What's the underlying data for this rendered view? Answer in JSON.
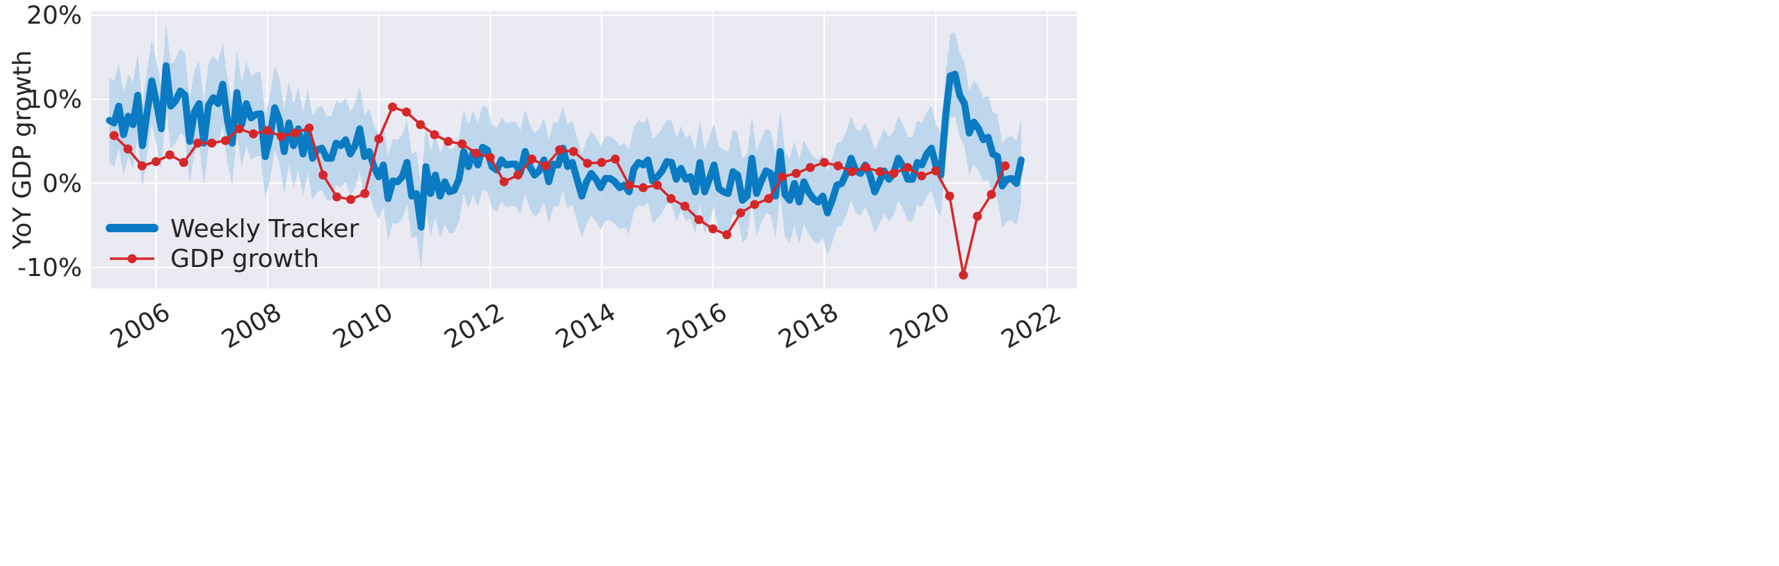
{
  "chart_data": {
    "type": "line",
    "title": "",
    "xlabel": "",
    "ylabel": "YoY GDP growth",
    "xlim": [
      "2004-11-01",
      "2022-07-15"
    ],
    "ylim": [
      -12.5,
      20.5
    ],
    "x_ticks": [
      "2006",
      "2008",
      "2010",
      "2012",
      "2014",
      "2016",
      "2018",
      "2020",
      "2022"
    ],
    "y_ticks": [
      {
        "value": 20,
        "label": "20%"
      },
      {
        "value": 10,
        "label": "10%"
      },
      {
        "value": 0,
        "label": "0%"
      },
      {
        "value": -10,
        "label": "-10%"
      }
    ],
    "grid": true,
    "legend_position": "lower-left",
    "colors": {
      "plot_background": "#eaeaf2",
      "grid": "#ffffff",
      "tracker": "#0a7bc2",
      "band": "#b7d3ec",
      "gdp": "#d62728"
    },
    "legend": [
      {
        "label": "Weekly Tracker",
        "style": "thick-line"
      },
      {
        "label": "GDP growth",
        "style": "line-marker"
      }
    ],
    "series": [
      {
        "name": "Weekly Tracker",
        "x_start": "2005-03-01",
        "x_end": "2021-07-15",
        "values": [
          7.5,
          7.2,
          9.2,
          5.8,
          8.0,
          7.0,
          10.5,
          4.5,
          8.5,
          12.2,
          9.5,
          6.5,
          14.0,
          9.2,
          9.8,
          11.0,
          10.5,
          5.0,
          8.5,
          9.5,
          4.8,
          9.3,
          10.2,
          9.5,
          11.8,
          7.5,
          4.8,
          10.8,
          7.0,
          9.5,
          7.8,
          8.2,
          8.3,
          3.2,
          5.5,
          9.0,
          7.5,
          3.8,
          7.2,
          4.5,
          6.5,
          3.5,
          6.3,
          3.0,
          4.0,
          4.2,
          3.0,
          3.0,
          4.8,
          4.5,
          5.2,
          3.5,
          4.5,
          6.5,
          3.2,
          3.8,
          2.0,
          0.8,
          2.2,
          -1.8,
          0.3,
          0.2,
          0.8,
          2.5,
          -1.5,
          -1.2,
          -5.2,
          2.0,
          -1.2,
          1.0,
          -1.5,
          0.2,
          -1.0,
          -0.8,
          0.5,
          3.8,
          2.0,
          3.7,
          2.2,
          4.3,
          4.0,
          2.0,
          1.6,
          2.8,
          2.2,
          2.3,
          2.3,
          1.3,
          3.8,
          2.0,
          1.0,
          1.5,
          2.8,
          0.2,
          2.3,
          2.2,
          4.2,
          2.0,
          2.5,
          0.5,
          -1.5,
          0.2,
          1.2,
          0.5,
          -0.5,
          0.6,
          0.6,
          0.2,
          -0.5,
          -0.2,
          -1.0,
          1.7,
          2.5,
          2.2,
          2.8,
          0.3,
          0.8,
          1.5,
          2.6,
          2.5,
          0.5,
          1.8,
          0.5,
          0.8,
          -1.0,
          2.5,
          -1.0,
          0.5,
          2.2,
          -0.6,
          -1.0,
          -1.2,
          1.4,
          1.0,
          -2.0,
          -1.5,
          3.0,
          -1.2,
          0.3,
          1.5,
          1.2,
          -1.5,
          3.8,
          -1.3,
          -2.0,
          0.0,
          -2.2,
          0.2,
          -1.0,
          -1.8,
          -2.2,
          -1.5,
          -3.5,
          -2.0,
          -0.2,
          0.0,
          1.2,
          3.0,
          1.5,
          1.2,
          2.2,
          1.0,
          -1.0,
          0.2,
          1.5,
          0.5,
          1.2,
          3.0,
          2.0,
          0.5,
          0.5,
          2.5,
          2.2,
          3.5,
          4.2,
          2.0,
          1.0,
          8.0,
          12.8,
          13.0,
          10.5,
          9.5,
          6.0,
          7.3,
          6.5,
          5.2,
          5.5,
          3.5,
          3.2,
          -0.3,
          0.5,
          0.6,
          0.0,
          2.8
        ],
        "band_lower": [
          2.5,
          2.0,
          4.2,
          1.0,
          3.2,
          1.8,
          5.5,
          -0.5,
          3.5,
          7.2,
          4.5,
          1.5,
          9.0,
          4.2,
          4.8,
          6.0,
          5.5,
          0.0,
          3.5,
          4.5,
          -0.2,
          4.3,
          5.2,
          4.5,
          6.8,
          2.5,
          -0.2,
          5.8,
          2.0,
          4.5,
          2.8,
          3.2,
          3.3,
          -1.8,
          0.5,
          4.0,
          2.5,
          -1.2,
          2.2,
          -0.5,
          1.5,
          -1.5,
          1.3,
          -2.0,
          -1.0,
          -0.8,
          -2.0,
          -2.0,
          -0.2,
          -0.5,
          0.2,
          -1.5,
          -0.5,
          1.5,
          -1.8,
          -1.2,
          -3.0,
          -4.2,
          -2.8,
          -6.8,
          -4.7,
          -4.8,
          -4.2,
          -2.5,
          -6.5,
          -6.2,
          -10.2,
          -3.0,
          -6.2,
          -4.0,
          -6.5,
          -4.8,
          -6.0,
          -5.8,
          -4.5,
          -1.2,
          -3.0,
          -1.3,
          -2.8,
          -0.7,
          -1.0,
          -3.0,
          -3.4,
          -2.2,
          -2.8,
          -2.7,
          -2.7,
          -3.7,
          -1.2,
          -3.0,
          -4.0,
          -3.5,
          -2.2,
          -4.8,
          -2.7,
          -2.8,
          -0.8,
          -3.0,
          -2.5,
          -4.5,
          -6.5,
          -4.8,
          -3.8,
          -4.5,
          -5.5,
          -4.4,
          -4.4,
          -4.8,
          -5.5,
          -5.2,
          -6.0,
          -3.3,
          -2.5,
          -2.8,
          -2.2,
          -4.7,
          -4.2,
          -3.5,
          -2.4,
          -2.5,
          -4.5,
          -3.2,
          -4.5,
          -4.2,
          -6.0,
          -2.5,
          -6.0,
          -4.5,
          -2.8,
          -5.6,
          -6.0,
          -6.2,
          -3.6,
          -4.0,
          -7.0,
          -6.5,
          -2.0,
          -6.2,
          -4.7,
          -3.5,
          -3.8,
          -6.5,
          -1.2,
          -6.3,
          -7.0,
          -5.0,
          -7.2,
          -4.8,
          -6.0,
          -6.8,
          -7.2,
          -6.5,
          -8.5,
          -7.0,
          -5.2,
          -5.0,
          -3.8,
          -2.0,
          -3.5,
          -3.8,
          -2.8,
          -4.0,
          -6.0,
          -4.8,
          -3.5,
          -4.5,
          -3.8,
          -2.0,
          -3.0,
          -4.5,
          -4.5,
          -2.5,
          -2.8,
          -1.5,
          -0.8,
          -3.0,
          -4.0,
          3.0,
          7.8,
          8.0,
          5.5,
          4.5,
          1.0,
          2.3,
          1.5,
          0.2,
          0.5,
          -1.5,
          -1.8,
          -5.3,
          -4.5,
          -4.4,
          -5.0,
          -2.2
        ],
        "band_upper": [
          12.5,
          12.2,
          14.2,
          10.8,
          13.0,
          12.0,
          15.5,
          9.5,
          13.5,
          17.2,
          14.5,
          11.5,
          19.0,
          14.2,
          14.8,
          16.0,
          15.5,
          10.0,
          13.5,
          14.5,
          9.8,
          14.3,
          15.2,
          14.5,
          16.8,
          12.5,
          9.8,
          15.8,
          12.0,
          14.5,
          12.8,
          13.2,
          13.3,
          8.2,
          10.5,
          14.0,
          12.5,
          8.8,
          12.2,
          9.5,
          11.5,
          8.5,
          11.3,
          8.0,
          9.0,
          9.2,
          8.0,
          8.0,
          9.8,
          9.5,
          10.2,
          8.5,
          9.5,
          11.5,
          8.2,
          8.8,
          7.0,
          5.8,
          7.2,
          3.2,
          5.3,
          5.2,
          5.8,
          7.5,
          3.5,
          3.8,
          -0.2,
          7.0,
          3.8,
          6.0,
          3.5,
          5.2,
          4.0,
          4.2,
          5.5,
          8.8,
          7.0,
          8.7,
          7.2,
          9.3,
          9.0,
          7.0,
          6.6,
          7.8,
          7.2,
          7.3,
          7.3,
          6.3,
          8.8,
          7.0,
          6.0,
          6.5,
          7.8,
          5.2,
          7.3,
          7.2,
          9.2,
          7.0,
          7.5,
          5.5,
          3.5,
          5.2,
          6.2,
          5.5,
          4.5,
          5.6,
          5.6,
          5.2,
          4.5,
          4.8,
          4.0,
          6.7,
          7.5,
          7.2,
          7.8,
          5.3,
          5.8,
          6.5,
          7.6,
          7.5,
          5.5,
          6.8,
          5.5,
          5.8,
          4.0,
          7.5,
          4.0,
          5.5,
          7.2,
          4.4,
          4.0,
          3.8,
          6.4,
          6.0,
          3.0,
          3.5,
          8.0,
          3.8,
          5.3,
          6.5,
          6.2,
          3.5,
          8.8,
          3.7,
          3.0,
          5.0,
          2.8,
          5.2,
          4.0,
          3.2,
          2.8,
          3.5,
          1.5,
          3.0,
          4.8,
          5.0,
          6.2,
          8.0,
          6.5,
          6.2,
          7.2,
          6.0,
          4.0,
          5.2,
          6.5,
          5.5,
          6.2,
          8.0,
          7.0,
          5.5,
          5.5,
          7.5,
          7.2,
          8.5,
          9.2,
          7.0,
          6.0,
          13.0,
          17.8,
          18.0,
          15.5,
          14.5,
          11.0,
          12.3,
          11.5,
          10.2,
          10.5,
          8.5,
          8.2,
          4.7,
          5.5,
          5.6,
          5.0,
          7.8
        ]
      },
      {
        "name": "GDP growth",
        "x": [
          "2005-04-01",
          "2005-07-01",
          "2005-10-01",
          "2006-01-01",
          "2006-04-01",
          "2006-07-01",
          "2006-10-01",
          "2007-01-01",
          "2007-04-01",
          "2007-07-01",
          "2007-10-01",
          "2008-01-01",
          "2008-04-01",
          "2008-07-01",
          "2008-10-01",
          "2009-01-01",
          "2009-04-01",
          "2009-07-01",
          "2009-10-01",
          "2010-01-01",
          "2010-04-01",
          "2010-07-01",
          "2010-10-01",
          "2011-01-01",
          "2011-04-01",
          "2011-07-01",
          "2011-10-01",
          "2012-01-01",
          "2012-04-01",
          "2012-07-01",
          "2012-10-01",
          "2013-01-01",
          "2013-04-01",
          "2013-07-01",
          "2013-10-01",
          "2014-01-01",
          "2014-04-01",
          "2014-07-01",
          "2014-10-01",
          "2015-01-01",
          "2015-04-01",
          "2015-07-01",
          "2015-10-01",
          "2016-01-01",
          "2016-04-01",
          "2016-07-01",
          "2016-10-01",
          "2017-01-01",
          "2017-04-01",
          "2017-07-01",
          "2017-10-01",
          "2018-01-01",
          "2018-04-01",
          "2018-07-01",
          "2018-10-01",
          "2019-01-01",
          "2019-04-01",
          "2019-07-01",
          "2019-10-01",
          "2020-01-01",
          "2020-04-01",
          "2020-07-01",
          "2020-10-01",
          "2021-01-01",
          "2021-04-01"
        ],
        "values": [
          5.7,
          4.1,
          2.1,
          2.6,
          3.4,
          2.5,
          4.8,
          4.8,
          5.1,
          6.5,
          5.9,
          6.3,
          5.6,
          6.0,
          6.6,
          1.0,
          -1.6,
          -1.9,
          -1.2,
          5.3,
          9.1,
          8.5,
          7.0,
          5.8,
          5.0,
          4.7,
          3.6,
          3.1,
          0.2,
          1.0,
          2.9,
          2.1,
          4.0,
          3.8,
          2.4,
          2.5,
          2.9,
          -0.2,
          -0.5,
          -0.2,
          -1.8,
          -2.7,
          -4.3,
          -5.4,
          -6.1,
          -3.5,
          -2.5,
          -1.8,
          0.8,
          1.2,
          1.9,
          2.5,
          2.1,
          1.4,
          1.9,
          1.4,
          1.2,
          1.9,
          0.9,
          1.5,
          -1.5,
          -10.9,
          -3.9,
          -1.3,
          2.1
        ]
      }
    ]
  }
}
